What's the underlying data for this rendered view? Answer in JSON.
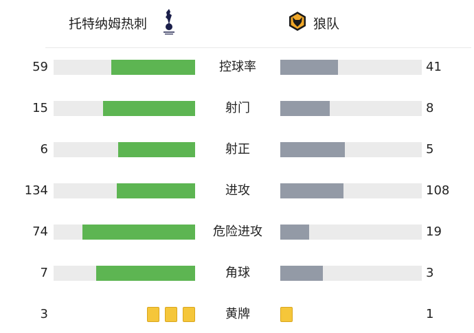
{
  "home": {
    "name": "托特纳姆热刺",
    "logo": "tottenham-cockerel-logo",
    "color": "#5db552"
  },
  "away": {
    "name": "狼队",
    "logo": "wolves-wolf-head-logo",
    "color": "#939aa6"
  },
  "chart_data": {
    "type": "bar",
    "orientation": "horizontal-diverging",
    "categories": [
      "控球率",
      "射门",
      "射正",
      "进攻",
      "危险进攻",
      "角球",
      "黄牌"
    ],
    "series": [
      {
        "name": "托特纳姆热刺",
        "values": [
          59,
          15,
          6,
          134,
          74,
          7,
          3
        ]
      },
      {
        "name": "狼队",
        "values": [
          41,
          8,
          5,
          108,
          19,
          3,
          1
        ]
      }
    ],
    "yellow_card_color": "#f5c63a"
  }
}
